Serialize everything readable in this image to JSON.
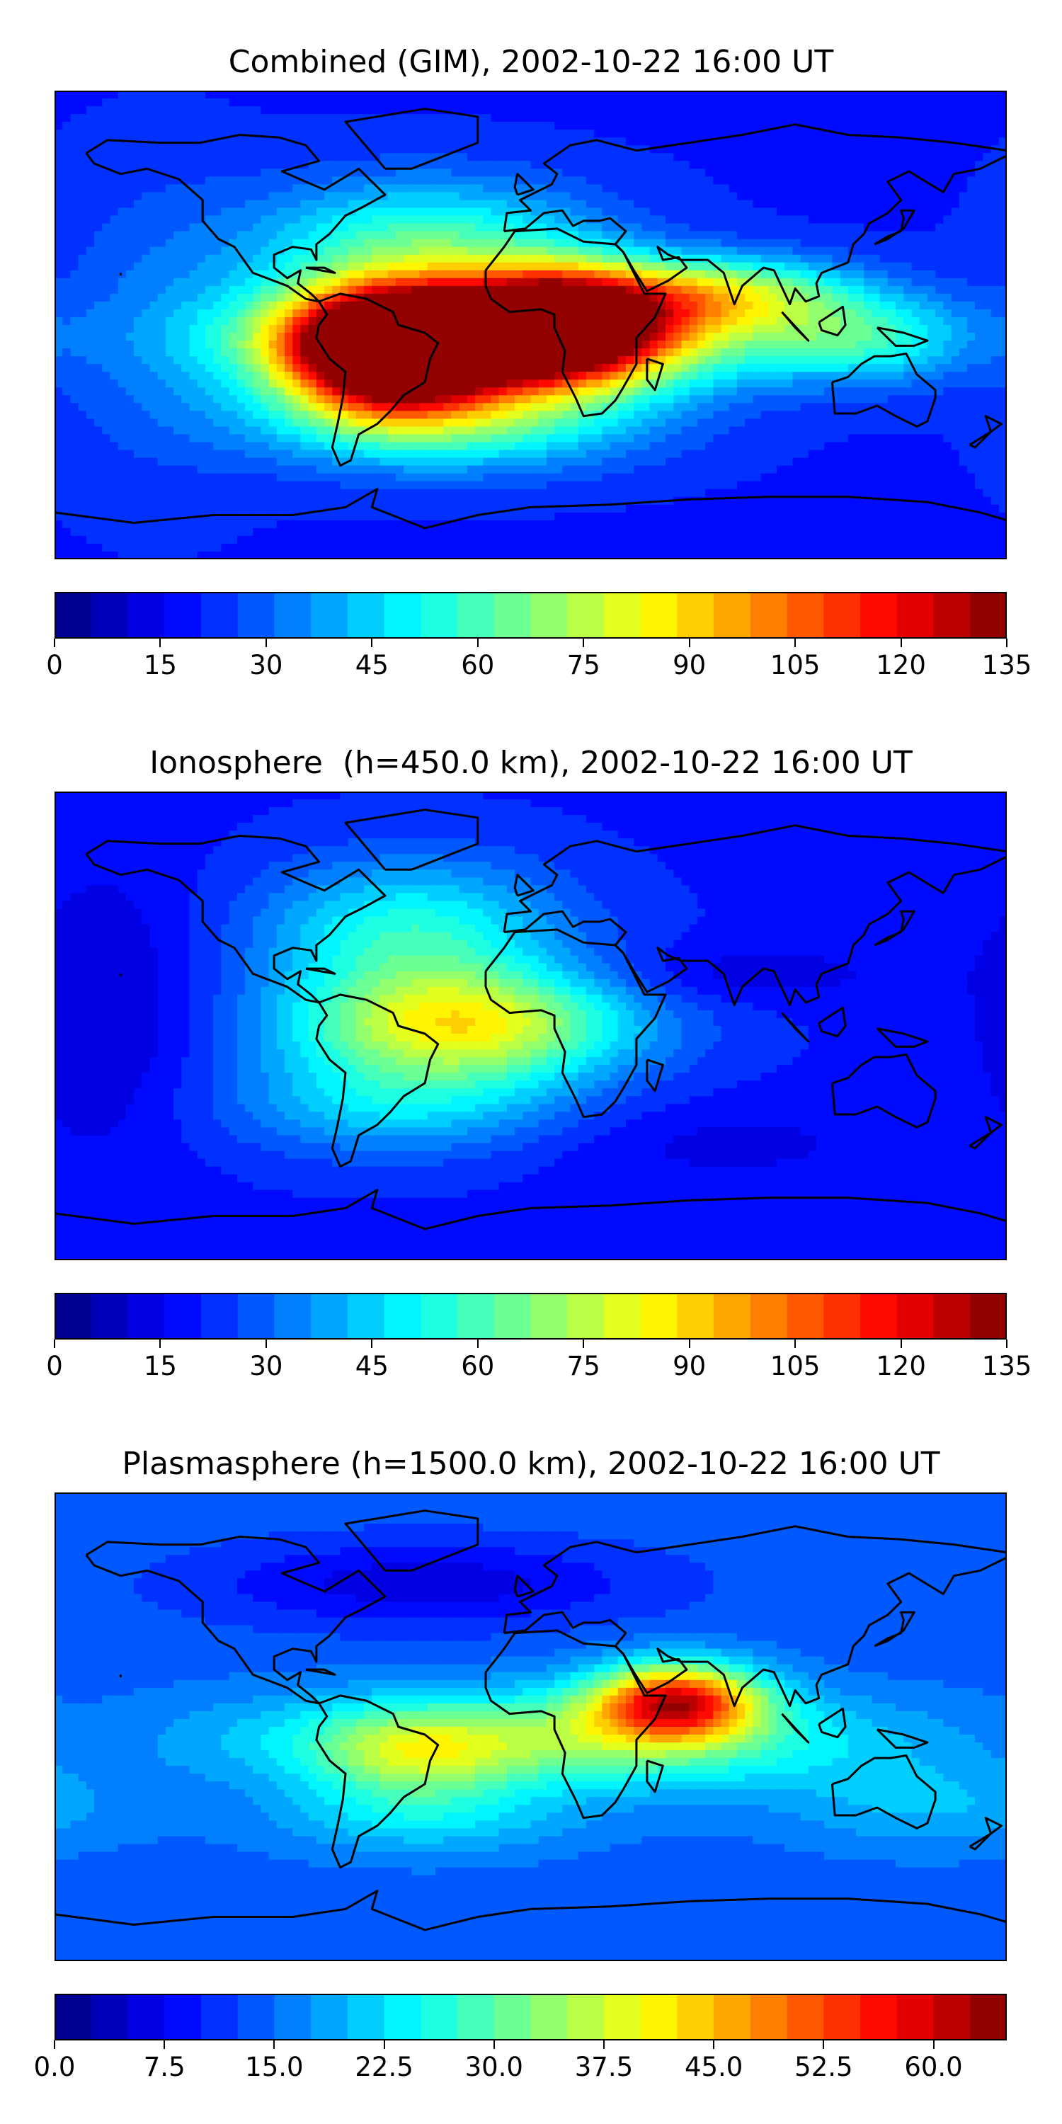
{
  "chart_data": [
    {
      "type": "heatmap",
      "title": "Combined (GIM), 2002-10-22 16:00 UT",
      "colormap": "jet",
      "levels": 26,
      "vmin": 0,
      "vmax": 135,
      "colorbar_ticks": [
        "0",
        "15",
        "30",
        "45",
        "60",
        "75",
        "90",
        "105",
        "120",
        "135"
      ],
      "colorbar_tick_values": [
        0,
        15,
        30,
        45,
        60,
        75,
        90,
        105,
        120,
        135
      ],
      "background_value": 20,
      "features": [
        {
          "lon": -15,
          "lat": -5,
          "value": 128,
          "sx": 55,
          "sy": 14
        },
        {
          "lon": -55,
          "lat": -10,
          "value": 105,
          "sx": 25,
          "sy": 16
        },
        {
          "lon": 12,
          "lat": 3,
          "value": 75,
          "sx": 25,
          "sy": 14
        },
        {
          "lon": -40,
          "lat": 30,
          "value": 40,
          "sx": 45,
          "sy": 18
        },
        {
          "lon": -30,
          "lat": -35,
          "value": 45,
          "sx": 50,
          "sy": 14
        },
        {
          "lon": 70,
          "lat": 12,
          "value": 50,
          "sx": 35,
          "sy": 10
        },
        {
          "lon": 125,
          "lat": -5,
          "value": 35,
          "sx": 30,
          "sy": 12
        },
        {
          "lon": -140,
          "lat": 0,
          "value": 10,
          "sx": 30,
          "sy": 40
        }
      ]
    },
    {
      "type": "heatmap",
      "title": "Ionosphere  (h=450.0 km), 2002-10-22 16:00 UT",
      "colormap": "jet",
      "levels": 26,
      "vmin": 0,
      "vmax": 135,
      "colorbar_ticks": [
        "0",
        "15",
        "30",
        "45",
        "60",
        "75",
        "90",
        "105",
        "120",
        "135"
      ],
      "colorbar_tick_values": [
        0,
        15,
        30,
        45,
        60,
        75,
        90,
        105,
        120,
        135
      ],
      "background_value": 20,
      "features": [
        {
          "lon": -25,
          "lat": 0,
          "value": 60,
          "sx": 45,
          "sy": 15
        },
        {
          "lon": -45,
          "lat": 35,
          "value": 35,
          "sx": 40,
          "sy": 20
        },
        {
          "lon": -50,
          "lat": -30,
          "value": 25,
          "sx": 45,
          "sy": 14
        },
        {
          "lon": 80,
          "lat": 20,
          "value": -8,
          "sx": 40,
          "sy": 8
        },
        {
          "lon": -160,
          "lat": 5,
          "value": -10,
          "sx": 25,
          "sy": 40
        },
        {
          "lon": 70,
          "lat": -45,
          "value": -6,
          "sx": 50,
          "sy": 12
        }
      ]
    },
    {
      "type": "heatmap",
      "title": "Plasmasphere (h=1500.0 km), 2002-10-22 16:00 UT",
      "colormap": "jet",
      "levels": 26,
      "vmin": 0.0,
      "vmax": 65.0,
      "colorbar_ticks": [
        "0.0",
        "7.5",
        "15.0",
        "22.5",
        "30.0",
        "37.5",
        "45.0",
        "52.5",
        "60.0"
      ],
      "colorbar_tick_values": [
        0.0,
        7.5,
        15.0,
        22.5,
        30.0,
        37.5,
        45.0,
        52.5,
        60.0
      ],
      "background_value": 14,
      "features": [
        {
          "lon": 55,
          "lat": 10,
          "value": 40,
          "sx": 22,
          "sy": 10
        },
        {
          "lon": 10,
          "lat": -5,
          "value": 20,
          "sx": 80,
          "sy": 13
        },
        {
          "lon": -45,
          "lat": -12,
          "value": 12,
          "sx": 25,
          "sy": 12
        },
        {
          "lon": -40,
          "lat": -35,
          "value": 8,
          "sx": 40,
          "sy": 10
        },
        {
          "lon": -40,
          "lat": 55,
          "value": -8,
          "sx": 60,
          "sy": 12
        },
        {
          "lon": 150,
          "lat": -30,
          "value": 6,
          "sx": 40,
          "sy": 12
        }
      ]
    }
  ],
  "coastline_color": "#000000"
}
